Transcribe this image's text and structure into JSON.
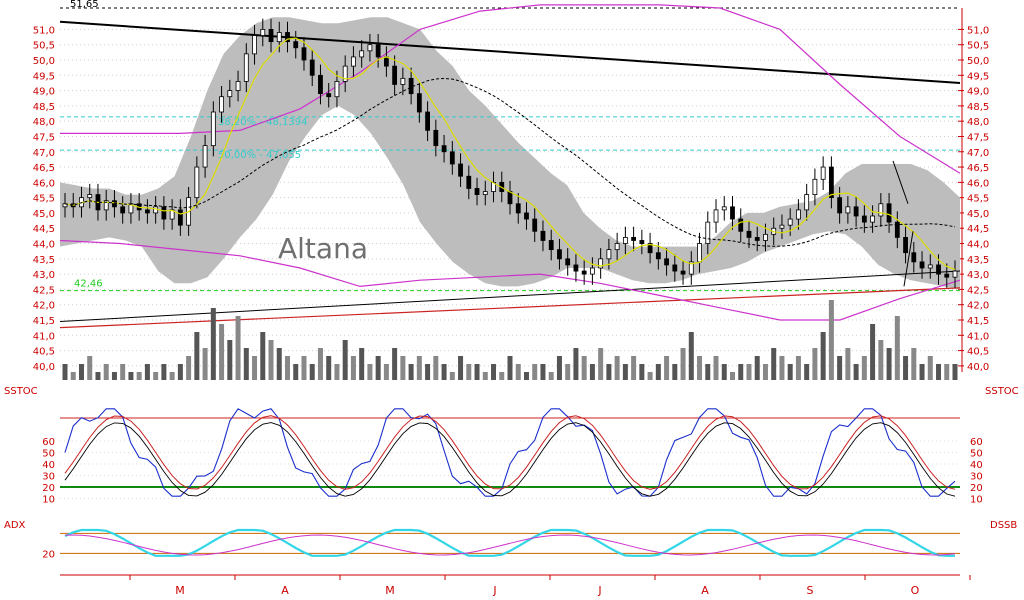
{
  "chart_data": [
    {
      "type": "line",
      "title": "Altana",
      "y_ticks": [
        "51,0",
        "50,5",
        "50,0",
        "49,5",
        "49,0",
        "48,5",
        "48,0",
        "47,5",
        "47,0",
        "46,5",
        "46,0",
        "45,5",
        "45,0",
        "44,5",
        "44,0",
        "43,5",
        "43,0",
        "42,5",
        "42,0",
        "41,5",
        "41,0",
        "40,5",
        "40,0"
      ],
      "ylim": [
        39.8,
        51.7
      ],
      "top_marker": "51,65",
      "support_label": "42,46",
      "support_value": 42.46,
      "fib_levels": [
        {
          "label": "38,20% - 48,1394",
          "value": 48.1394
        },
        {
          "label": "50,00% - 47,055",
          "value": 47.055
        }
      ],
      "close": [
        45.3,
        45.2,
        45.5,
        45.6,
        45.1,
        45.4,
        45.2,
        45.0,
        45.3,
        45.1,
        45.0,
        45.2,
        44.8,
        45.1,
        44.6,
        45.5,
        46.5,
        47.2,
        48.3,
        48.8,
        49.0,
        49.3,
        50.2,
        50.8,
        51.0,
        50.6,
        50.9,
        50.6,
        50.4,
        50.0,
        49.5,
        48.9,
        48.8,
        49.3,
        49.8,
        50.1,
        50.3,
        50.5,
        50.1,
        49.8,
        49.2,
        49.4,
        48.9,
        48.3,
        47.7,
        47.2,
        47.0,
        46.6,
        46.2,
        45.8,
        45.6,
        45.7,
        46.0,
        45.7,
        45.3,
        45.0,
        44.8,
        44.4,
        44.1,
        43.8,
        43.5,
        43.3,
        43.1,
        43.0,
        43.2,
        43.5,
        43.8,
        44.0,
        44.2,
        44.1,
        44.0,
        43.7,
        43.5,
        43.3,
        43.1,
        43.0,
        43.4,
        44.0,
        44.7,
        45.1,
        45.2,
        44.8,
        44.4,
        44.2,
        44.1,
        44.3,
        44.5,
        44.6,
        44.8,
        45.1,
        45.6,
        46.1,
        46.5,
        45.5,
        45.0,
        45.2,
        44.9,
        44.7,
        44.9,
        45.3,
        44.7,
        44.2,
        43.7,
        43.4,
        43.2,
        43.3,
        43.0,
        42.9,
        43.1
      ],
      "bb_upper_series": [
        46.0,
        45.9,
        45.8,
        45.8,
        45.6,
        45.6,
        45.8,
        46.2,
        47.5,
        49.0,
        50.2,
        50.8,
        51.2,
        51.4,
        51.4,
        51.3,
        51.2,
        51.2,
        51.3,
        51.4,
        51.4,
        51.2,
        51.0,
        50.3,
        49.8,
        49.0,
        48.5,
        47.9,
        47.3,
        46.8,
        46.3,
        45.9,
        45.0,
        44.5,
        44.1,
        43.9,
        43.9,
        43.9,
        43.9,
        43.9,
        44.2,
        44.7,
        45.0,
        45.0,
        45.2,
        45.3,
        45.4,
        45.7,
        46.3,
        46.6,
        46.6,
        46.6,
        46.6,
        46.4,
        46.0,
        45.5
      ],
      "bb_lower_series": [
        43.9,
        44.0,
        44.1,
        44.2,
        44.1,
        43.9,
        43.1,
        42.7,
        42.7,
        42.9,
        43.5,
        44.2,
        44.8,
        45.6,
        46.7,
        47.5,
        48.2,
        48.5,
        48.2,
        47.6,
        46.8,
        45.9,
        44.7,
        44.0,
        43.4,
        43.0,
        42.7,
        42.6,
        42.6,
        42.7,
        42.9,
        43.2,
        43.2,
        43.2,
        43.0,
        42.8,
        42.7,
        42.7,
        42.8,
        43.0,
        43.1,
        43.2,
        43.4,
        43.7,
        43.9,
        44.1,
        44.3,
        44.4,
        44.3,
        43.9,
        43.3,
        43.0,
        42.8,
        42.7,
        42.6,
        42.5
      ]
    },
    {
      "type": "bar",
      "volume": [
        2,
        1,
        2,
        3,
        1,
        2,
        1,
        2,
        1,
        1,
        2,
        1,
        2,
        1,
        2,
        3,
        6,
        4,
        9,
        7,
        5,
        8,
        4,
        3,
        6,
        5,
        4,
        3,
        2,
        3,
        2,
        4,
        3,
        2,
        5,
        3,
        4,
        2,
        3,
        2,
        4,
        3,
        2,
        3,
        2,
        3,
        2,
        1,
        3,
        2,
        2,
        1,
        2,
        1,
        3,
        2,
        1,
        2,
        2,
        1,
        3,
        2,
        4,
        3,
        2,
        4,
        2,
        3,
        2,
        3,
        2,
        1,
        2,
        3,
        2,
        4,
        6,
        3,
        2,
        3,
        2,
        1,
        2,
        2,
        3,
        2,
        4,
        3,
        2,
        3,
        2,
        4,
        6,
        10,
        3,
        4,
        2,
        3,
        7,
        5,
        4,
        8,
        3,
        4,
        2,
        3,
        2,
        2,
        2
      ]
    },
    {
      "type": "line",
      "panel_label": "SSTOC",
      "y_ticks": [
        "60",
        "50",
        "40",
        "30",
        "20",
        "10"
      ],
      "ylim": [
        0,
        100
      ],
      "upper_level": 80,
      "lower_level": 20
    },
    {
      "type": "line",
      "panel_label_left": "ADX",
      "panel_label_right": "DSSB",
      "y_ticks": [
        "20"
      ],
      "ylim": [
        0,
        60
      ],
      "level": 20
    }
  ],
  "month_labels": [
    "M",
    "A",
    "M",
    "J",
    "J",
    "A",
    "S",
    "O"
  ]
}
